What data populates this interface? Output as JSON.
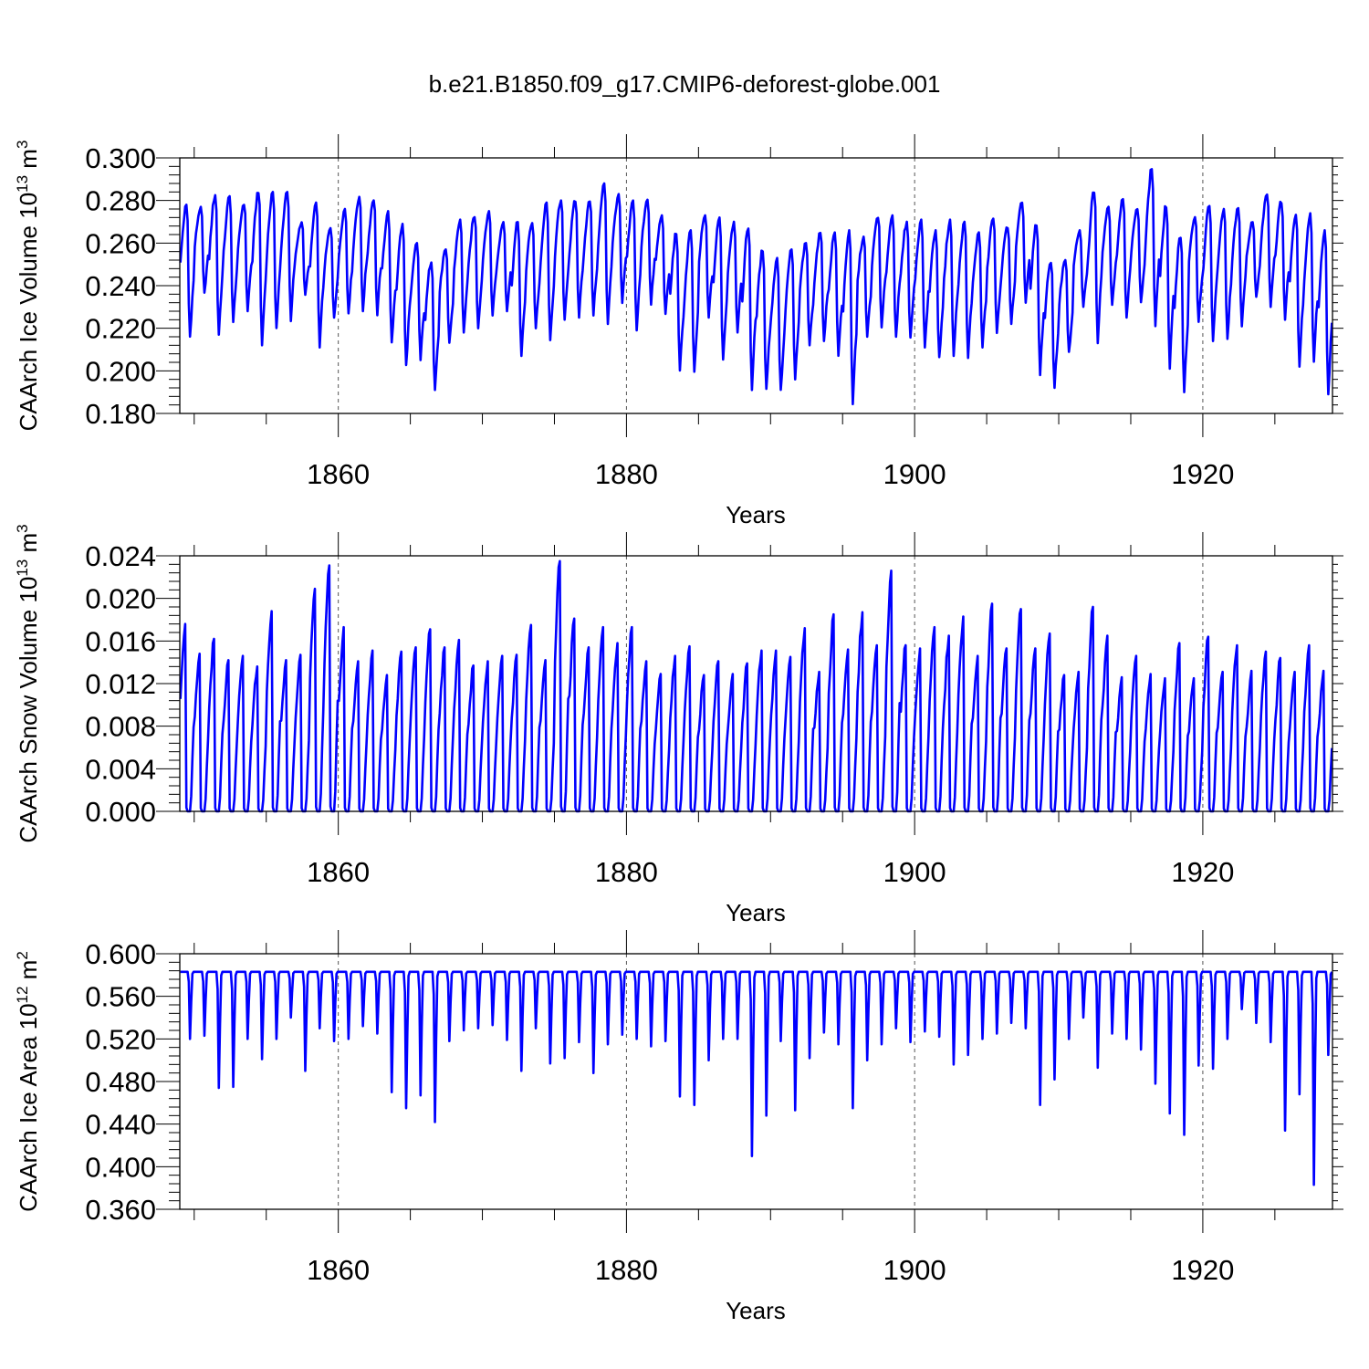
{
  "figure": {
    "title": "b.e21.B1850.f09_g17.CMIP6-deforest-globe.001",
    "line_color": "#0000ff"
  },
  "chart_data": [
    {
      "type": "line",
      "id": "ice-volume",
      "title": "",
      "xlabel": "Years",
      "ylabel_base": "CAArch Ice Volume 10",
      "ylabel_exp": "13",
      "ylabel_unit": " m",
      "ylabel_unit_exp": "3",
      "xlim": [
        1849,
        1929
      ],
      "ylim": [
        0.18,
        0.3
      ],
      "xticks": [
        1860,
        1880,
        1900,
        1920
      ],
      "yticks": [
        0.18,
        0.2,
        0.22,
        0.24,
        0.26,
        0.28,
        0.3
      ],
      "ytick_labels": [
        "0.180",
        "0.200",
        "0.220",
        "0.240",
        "0.260",
        "0.280",
        "0.300"
      ],
      "grid_x": true,
      "series": [
        {
          "name": "CAArch Ice Volume",
          "x_start": 1849,
          "step": 1,
          "annual_max": [
            0.278,
            0.277,
            0.283,
            0.282,
            0.279,
            0.285,
            0.284,
            0.285,
            0.27,
            0.279,
            0.267,
            0.276,
            0.282,
            0.281,
            0.275,
            0.269,
            0.26,
            0.252,
            0.257,
            0.271,
            0.273,
            0.275,
            0.27,
            0.27,
            0.27,
            0.279,
            0.28,
            0.28,
            0.28,
            0.288,
            0.283,
            0.28,
            0.281,
            0.273,
            0.265,
            0.266,
            0.273,
            0.272,
            0.27,
            0.268,
            0.257,
            0.253,
            0.257,
            0.26,
            0.265,
            0.265,
            0.266,
            0.263,
            0.273,
            0.273,
            0.27,
            0.271,
            0.266,
            0.271,
            0.27,
            0.265,
            0.272,
            0.268,
            0.279,
            0.269,
            0.252,
            0.252,
            0.266,
            0.285,
            0.277,
            0.281,
            0.276,
            0.295,
            0.278,
            0.264,
            0.273,
            0.278,
            0.276,
            0.277,
            0.27,
            0.284,
            0.28,
            0.275,
            0.274,
            0.266
          ],
          "annual_min": [
            0.216,
            0.236,
            0.217,
            0.222,
            0.228,
            0.212,
            0.22,
            0.223,
            0.235,
            0.211,
            0.225,
            0.227,
            0.228,
            0.226,
            0.212,
            0.202,
            0.205,
            0.191,
            0.213,
            0.218,
            0.22,
            0.226,
            0.228,
            0.206,
            0.22,
            0.213,
            0.224,
            0.225,
            0.226,
            0.222,
            0.231,
            0.219,
            0.231,
            0.226,
            0.199,
            0.198,
            0.225,
            0.205,
            0.218,
            0.191,
            0.191,
            0.19,
            0.196,
            0.212,
            0.214,
            0.207,
            0.184,
            0.216,
            0.22,
            0.216,
            0.215,
            0.211,
            0.205,
            0.207,
            0.206,
            0.211,
            0.217,
            0.222,
            0.232,
            0.198,
            0.192,
            0.208,
            0.23,
            0.213,
            0.231,
            0.225,
            0.232,
            0.221,
            0.201,
            0.19,
            0.223,
            0.214,
            0.215,
            0.22,
            0.234,
            0.23,
            0.224,
            0.202,
            0.204,
            0.189
          ]
        }
      ]
    },
    {
      "type": "line",
      "id": "snow-volume",
      "title": "",
      "xlabel": "Years",
      "ylabel_base": "CAArch Snow Volume 10",
      "ylabel_exp": "13",
      "ylabel_unit": " m",
      "ylabel_unit_exp": "3",
      "xlim": [
        1849,
        1929
      ],
      "ylim": [
        0.0,
        0.024
      ],
      "xticks": [
        1860,
        1880,
        1900,
        1920
      ],
      "yticks": [
        0.0,
        0.004,
        0.008,
        0.012,
        0.016,
        0.02,
        0.024
      ],
      "ytick_labels": [
        "0.000",
        "0.004",
        "0.008",
        "0.012",
        "0.016",
        "0.020",
        "0.024"
      ],
      "grid_x": true,
      "series": [
        {
          "name": "CAArch Snow Volume",
          "x_start": 1849,
          "step": 1,
          "annual_max": [
            0.0176,
            0.0148,
            0.0162,
            0.0142,
            0.0146,
            0.0136,
            0.0188,
            0.0142,
            0.0147,
            0.0209,
            0.0231,
            0.0173,
            0.0141,
            0.0151,
            0.0128,
            0.015,
            0.0154,
            0.0171,
            0.0154,
            0.0161,
            0.0137,
            0.0141,
            0.0146,
            0.0147,
            0.0175,
            0.0142,
            0.0235,
            0.0181,
            0.0154,
            0.0173,
            0.0158,
            0.0173,
            0.0141,
            0.0129,
            0.0146,
            0.0155,
            0.0128,
            0.0141,
            0.0129,
            0.0139,
            0.0151,
            0.0151,
            0.0145,
            0.0172,
            0.0131,
            0.0185,
            0.0152,
            0.0187,
            0.0156,
            0.0226,
            0.0156,
            0.0153,
            0.0173,
            0.0165,
            0.0183,
            0.0146,
            0.0195,
            0.0153,
            0.019,
            0.0153,
            0.0167,
            0.0128,
            0.0131,
            0.0192,
            0.0165,
            0.0126,
            0.0146,
            0.0129,
            0.0125,
            0.0158,
            0.0125,
            0.0164,
            0.0131,
            0.0156,
            0.0132,
            0.015,
            0.0144,
            0.0131,
            0.0156,
            0.0132
          ],
          "annual_min": [
            0.0,
            0.0,
            0.0,
            0.0,
            0.0,
            0.0,
            0.0,
            0.0,
            0.0,
            0.0,
            0.0,
            0.0,
            0.0,
            0.0,
            0.0,
            0.0,
            0.0,
            0.0,
            0.0,
            0.0,
            0.0,
            0.0,
            0.0,
            0.0,
            0.0,
            0.0,
            0.0,
            0.0,
            0.0,
            0.0,
            0.0,
            0.0,
            0.0,
            0.0,
            0.0,
            0.0,
            0.0,
            0.0,
            0.0,
            0.0,
            0.0,
            0.0,
            0.0,
            0.0,
            0.0,
            0.0,
            0.0,
            0.0,
            0.0,
            0.0,
            0.0,
            0.0,
            0.0,
            0.0,
            0.0,
            0.0,
            0.0,
            0.0,
            0.0,
            0.0,
            0.0,
            0.0,
            0.0,
            0.0,
            0.0,
            0.0,
            0.0,
            0.0,
            0.0,
            0.0,
            0.0,
            0.0,
            0.0,
            0.0,
            0.0,
            0.0,
            0.0,
            0.0,
            0.0,
            0.0
          ]
        }
      ]
    },
    {
      "type": "line",
      "id": "ice-area",
      "title": "",
      "xlabel": "Years",
      "ylabel_base": "CAArch Ice Area 10",
      "ylabel_exp": "12",
      "ylabel_unit": " m",
      "ylabel_unit_exp": "2",
      "xlim": [
        1849,
        1929
      ],
      "ylim": [
        0.36,
        0.6
      ],
      "xticks": [
        1860,
        1880,
        1900,
        1920
      ],
      "yticks": [
        0.36,
        0.4,
        0.44,
        0.48,
        0.52,
        0.56,
        0.6
      ],
      "ytick_labels": [
        "0.360",
        "0.400",
        "0.440",
        "0.480",
        "0.520",
        "0.560",
        "0.600"
      ],
      "grid_x": true,
      "series": [
        {
          "name": "CAArch Ice Area",
          "x_start": 1849,
          "step": 1,
          "annual_max": [
            0.583,
            0.583,
            0.583,
            0.583,
            0.583,
            0.583,
            0.583,
            0.583,
            0.583,
            0.583,
            0.583,
            0.583,
            0.583,
            0.583,
            0.583,
            0.583,
            0.583,
            0.583,
            0.583,
            0.583,
            0.583,
            0.583,
            0.583,
            0.583,
            0.583,
            0.583,
            0.583,
            0.583,
            0.583,
            0.583,
            0.583,
            0.583,
            0.583,
            0.583,
            0.583,
            0.583,
            0.583,
            0.583,
            0.583,
            0.583,
            0.583,
            0.583,
            0.583,
            0.583,
            0.583,
            0.583,
            0.583,
            0.583,
            0.583,
            0.583,
            0.583,
            0.583,
            0.583,
            0.583,
            0.583,
            0.583,
            0.583,
            0.583,
            0.583,
            0.583,
            0.583,
            0.583,
            0.583,
            0.583,
            0.583,
            0.583,
            0.583,
            0.583,
            0.583,
            0.583,
            0.583,
            0.583,
            0.583,
            0.583,
            0.583,
            0.583,
            0.583,
            0.583,
            0.583,
            0.583
          ],
          "annual_min": [
            0.52,
            0.523,
            0.474,
            0.475,
            0.52,
            0.501,
            0.52,
            0.54,
            0.49,
            0.53,
            0.518,
            0.52,
            0.532,
            0.525,
            0.47,
            0.455,
            0.467,
            0.442,
            0.518,
            0.528,
            0.53,
            0.533,
            0.519,
            0.49,
            0.53,
            0.497,
            0.502,
            0.517,
            0.488,
            0.515,
            0.524,
            0.52,
            0.513,
            0.518,
            0.466,
            0.458,
            0.5,
            0.52,
            0.52,
            0.41,
            0.448,
            0.518,
            0.453,
            0.502,
            0.526,
            0.515,
            0.455,
            0.5,
            0.515,
            0.53,
            0.517,
            0.527,
            0.522,
            0.496,
            0.505,
            0.52,
            0.525,
            0.535,
            0.53,
            0.458,
            0.482,
            0.52,
            0.54,
            0.493,
            0.525,
            0.52,
            0.51,
            0.478,
            0.45,
            0.43,
            0.495,
            0.492,
            0.52,
            0.548,
            0.535,
            0.517,
            0.434,
            0.468,
            0.383,
            0.505
          ]
        }
      ]
    }
  ]
}
